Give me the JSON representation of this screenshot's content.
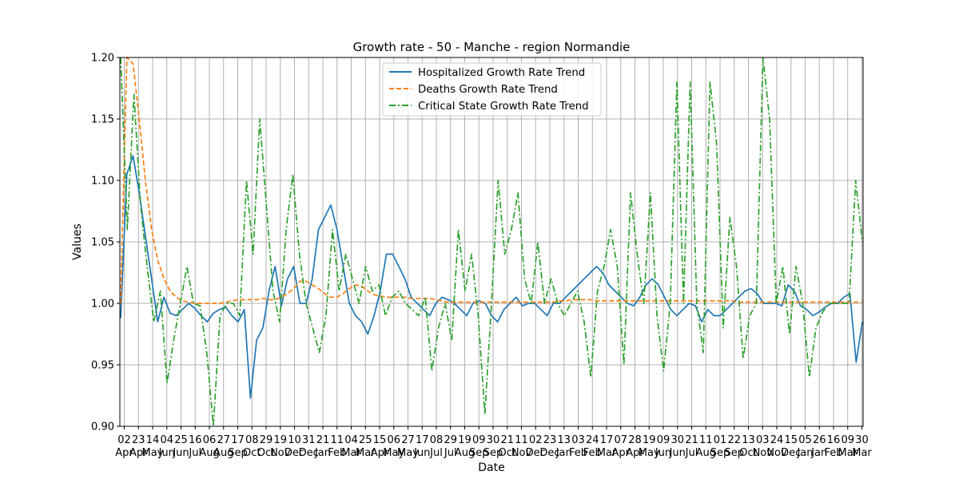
{
  "chart_data": {
    "type": "line",
    "title": "Growth rate - 50 - Manche - region Normandie",
    "xlabel": "Date",
    "ylabel": "Values",
    "ylim": [
      0.9,
      1.2
    ],
    "yticks": [
      "0.90",
      "0.95",
      "1.00",
      "1.05",
      "1.10",
      "1.15",
      "1.20"
    ],
    "grid": true,
    "legend_position": "top-center",
    "x_tick_labels": [
      [
        "02",
        "Apr"
      ],
      [
        "23",
        "Apr"
      ],
      [
        "14",
        "May"
      ],
      [
        "04",
        "Jun"
      ],
      [
        "25",
        "Jun"
      ],
      [
        "16",
        "Jul"
      ],
      [
        "06",
        "Aug"
      ],
      [
        "27",
        "Aug"
      ],
      [
        "17",
        "Sep"
      ],
      [
        "08",
        "Oct"
      ],
      [
        "29",
        "Oct"
      ],
      [
        "19",
        "Nov"
      ],
      [
        "10",
        "Dec"
      ],
      [
        "31",
        "Dec"
      ],
      [
        "21",
        "Jan"
      ],
      [
        "11",
        "Feb"
      ],
      [
        "04",
        "Mar"
      ],
      [
        "25",
        "Mar"
      ],
      [
        "15",
        "Apr"
      ],
      [
        "06",
        "May"
      ],
      [
        "27",
        "May"
      ],
      [
        "17",
        "Jun"
      ],
      [
        "08",
        "Jul"
      ],
      [
        "29",
        "Jul"
      ],
      [
        "19",
        "Aug"
      ],
      [
        "09",
        "Sep"
      ],
      [
        "30",
        "Sep"
      ],
      [
        "21",
        "Oct"
      ],
      [
        "11",
        "Nov"
      ],
      [
        "02",
        "Dec"
      ],
      [
        "23",
        "Dec"
      ],
      [
        "13",
        "Jan"
      ],
      [
        "03",
        "Feb"
      ],
      [
        "24",
        "Feb"
      ],
      [
        "17",
        "Mar"
      ],
      [
        "07",
        "Apr"
      ],
      [
        "28",
        "Apr"
      ],
      [
        "19",
        "May"
      ],
      [
        "09",
        "Jun"
      ],
      [
        "30",
        "Jun"
      ],
      [
        "21",
        "Jul"
      ],
      [
        "11",
        "Aug"
      ],
      [
        "01",
        "Sep"
      ],
      [
        "22",
        "Sep"
      ],
      [
        "13",
        "Oct"
      ],
      [
        "03",
        "Nov"
      ],
      [
        "24",
        "Nov"
      ],
      [
        "15",
        "Dec"
      ],
      [
        "05",
        "Jan"
      ],
      [
        "26",
        "Jan"
      ],
      [
        "16",
        "Feb"
      ],
      [
        "09",
        "Mar"
      ],
      [
        "30",
        "Mar"
      ]
    ],
    "series": [
      {
        "name": "Hospitalized Growth Rate Trend",
        "color": "#1f77b4",
        "style": "solid",
        "values": [
          0.988,
          1.105,
          1.12,
          1.09,
          1.055,
          1.02,
          0.985,
          1.005,
          0.992,
          0.99,
          0.995,
          1.0,
          0.996,
          0.99,
          0.985,
          0.992,
          0.995,
          0.997,
          0.99,
          0.985,
          0.995,
          0.923,
          0.97,
          0.98,
          1.01,
          1.03,
          0.998,
          1.02,
          1.03,
          1.0,
          1.0,
          1.02,
          1.06,
          1.07,
          1.08,
          1.06,
          1.03,
          1.0,
          0.99,
          0.985,
          0.975,
          0.99,
          1.01,
          1.04,
          1.04,
          1.03,
          1.02,
          1.005,
          1.0,
          0.995,
          0.99,
          1.0,
          1.005,
          1.003,
          1.0,
          0.995,
          0.99,
          1.0,
          1.002,
          1.0,
          0.99,
          0.985,
          0.995,
          1.0,
          1.005,
          0.998,
          1.0,
          1.0,
          0.995,
          0.99,
          1.0,
          1.0,
          1.005,
          1.01,
          1.015,
          1.02,
          1.025,
          1.03,
          1.025,
          1.015,
          1.01,
          1.005,
          1.0,
          0.998,
          1.005,
          1.015,
          1.02,
          1.015,
          1.005,
          0.995,
          0.99,
          0.995,
          1.0,
          0.998,
          0.985,
          0.995,
          0.99,
          0.99,
          0.995,
          1.0,
          1.005,
          1.01,
          1.012,
          1.008,
          1.0,
          1.0,
          1.0,
          0.998,
          1.015,
          1.01,
          0.998,
          0.995,
          0.99,
          0.993,
          0.997,
          1.0,
          1.0,
          1.005,
          1.008,
          0.952,
          0.985
        ]
      },
      {
        "name": "Deaths Growth Rate Trend",
        "color": "#ff7f0e",
        "style": "dashed",
        "values": [
          1.0,
          1.2,
          1.195,
          1.15,
          1.1,
          1.06,
          1.035,
          1.02,
          1.01,
          1.005,
          1.002,
          1.001,
          1.0,
          1.0,
          1.0,
          1.0,
          1.0,
          1.001,
          1.002,
          1.003,
          1.003,
          1.003,
          1.003,
          1.004,
          1.003,
          1.003,
          1.005,
          1.008,
          1.012,
          1.018,
          1.018,
          1.015,
          1.012,
          1.008,
          1.005,
          1.005,
          1.008,
          1.012,
          1.015,
          1.014,
          1.01,
          1.007,
          1.006,
          1.005,
          1.005,
          1.005,
          1.005,
          1.004,
          1.004,
          1.004,
          1.004,
          1.003,
          1.002,
          1.001,
          1.001,
          1.001,
          1.001,
          1.001,
          1.001,
          1.001,
          1.001,
          1.001,
          1.001,
          1.001,
          1.001,
          1.001,
          1.001,
          1.001,
          1.001,
          1.001,
          1.001,
          1.002,
          1.002,
          1.003,
          1.003,
          1.003,
          1.003,
          1.002,
          1.002,
          1.002,
          1.002,
          1.002,
          1.002,
          1.002,
          1.002,
          1.002,
          1.002,
          1.002,
          1.002,
          1.002,
          1.002,
          1.002,
          1.002,
          1.002,
          1.002,
          1.002,
          1.002,
          1.002,
          1.002,
          1.002,
          1.001,
          1.001,
          1.001,
          1.001,
          1.001,
          1.001,
          1.001,
          1.001,
          1.001,
          1.001,
          1.001,
          1.001,
          1.001,
          1.001,
          1.001,
          1.001,
          1.001,
          1.001,
          1.001,
          1.001,
          1.001
        ]
      },
      {
        "name": "Critical State Growth Rate Trend",
        "color": "#2ca02c",
        "style": "dashdot",
        "values": [
          1.2,
          1.06,
          1.17,
          1.08,
          1.03,
          0.985,
          1.01,
          0.935,
          0.97,
          1.0,
          1.03,
          1.0,
          0.998,
          0.96,
          0.9,
          0.99,
          1.0,
          1.0,
          0.99,
          1.1,
          1.04,
          1.15,
          1.08,
          1.01,
          0.985,
          1.06,
          1.105,
          1.04,
          1.0,
          0.98,
          0.96,
          0.99,
          1.06,
          1.01,
          1.04,
          1.02,
          1.0,
          1.03,
          1.01,
          1.015,
          0.99,
          1.005,
          1.01,
          1.0,
          0.995,
          0.99,
          1.005,
          0.945,
          0.98,
          1.0,
          0.97,
          1.06,
          1.01,
          1.04,
          0.99,
          0.91,
          1.0,
          1.1,
          1.04,
          1.06,
          1.09,
          1.02,
          1.0,
          1.05,
          1.0,
          1.02,
          1.0,
          0.99,
          1.0,
          1.01,
          0.985,
          0.94,
          1.01,
          1.03,
          1.06,
          1.03,
          0.95,
          1.09,
          1.04,
          1.0,
          1.09,
          0.99,
          0.945,
          1.0,
          1.18,
          1.0,
          1.18,
          1.0,
          0.96,
          1.18,
          1.13,
          0.98,
          1.07,
          1.03,
          0.955,
          0.99,
          1.0,
          1.2,
          1.15,
          1.0,
          1.03,
          0.975,
          1.03,
          1.0,
          0.94,
          0.98,
          0.993,
          1.0,
          1.0,
          1.0,
          1.0,
          1.1,
          1.05
        ]
      }
    ]
  }
}
